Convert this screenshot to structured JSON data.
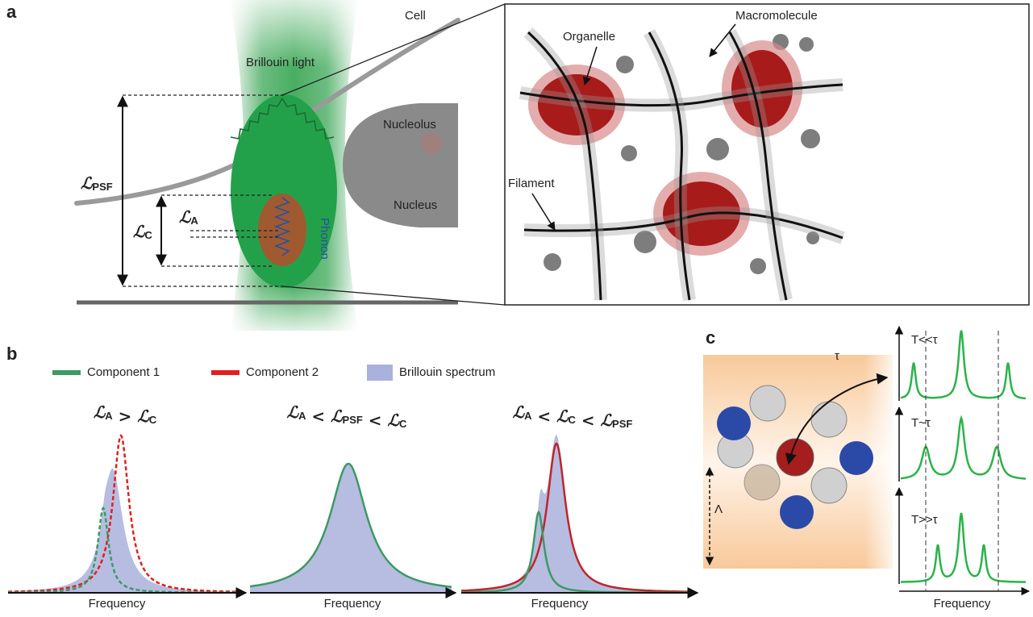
{
  "panel_a": {
    "label": "a",
    "cell": "Cell",
    "brillouin_light": "Brillouin light",
    "nucleolus": "Nucleolus",
    "nucleus": "Nucleus",
    "phonon": "Phonon",
    "symbols": {
      "psf": {
        "main": "ℒ",
        "sub": "PSF"
      },
      "c": {
        "main": "ℒ",
        "sub": "C"
      },
      "a": {
        "main": "ℒ",
        "sub": "A"
      }
    },
    "organelle": "Organelle",
    "macromolecule": "Macromolecule",
    "filament": "Filament"
  },
  "panel_b": {
    "label": "b",
    "legend": [
      "Component 1",
      "Component 2",
      "Brillouin spectrum"
    ],
    "conditions": [
      [
        {
          "main": "ℒ",
          "sub": "A"
        },
        " > ",
        {
          "main": "ℒ",
          "sub": "C"
        }
      ],
      [
        {
          "main": "ℒ",
          "sub": "A"
        },
        " < ",
        {
          "main": "ℒ",
          "sub": "PSF"
        },
        " < ",
        {
          "main": "ℒ",
          "sub": "C"
        }
      ],
      [
        {
          "main": "ℒ",
          "sub": "A"
        },
        " < ",
        {
          "main": "ℒ",
          "sub": "C"
        },
        " < ",
        {
          "main": "ℒ",
          "sub": "PSF"
        }
      ]
    ],
    "x_labels": [
      "Frequency",
      "Frequency",
      "Frequency"
    ]
  },
  "panel_c": {
    "label": "c",
    "tau": "τ",
    "lambda": "Λ",
    "regimes": [
      "T<<τ",
      "T~τ",
      "T>>τ"
    ],
    "x_label": "Frequency"
  }
}
